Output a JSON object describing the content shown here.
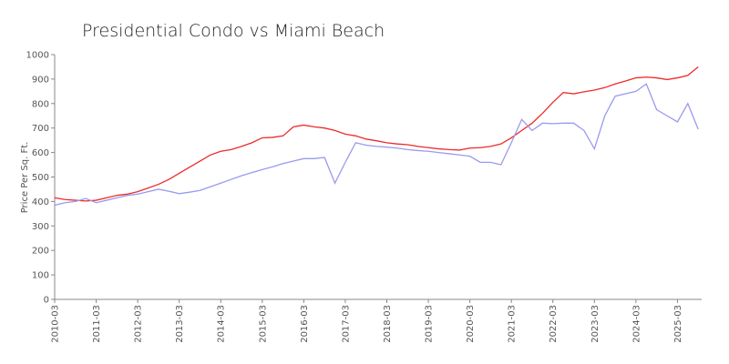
{
  "chart_data": {
    "type": "line",
    "title": "Presidential Condo vs Miami Beach",
    "ylabel": "Price Per Sq. Ft.",
    "x": [
      "2010-03",
      "2010-06",
      "2010-09",
      "2010-12",
      "2011-03",
      "2011-06",
      "2011-09",
      "2011-12",
      "2012-03",
      "2012-06",
      "2012-09",
      "2012-12",
      "2013-03",
      "2013-06",
      "2013-09",
      "2013-12",
      "2014-03",
      "2014-06",
      "2014-09",
      "2014-12",
      "2015-03",
      "2015-06",
      "2015-09",
      "2015-12",
      "2016-03",
      "2016-06",
      "2016-09",
      "2016-12",
      "2017-03",
      "2017-06",
      "2017-09",
      "2017-12",
      "2018-03",
      "2018-06",
      "2018-09",
      "2018-12",
      "2019-03",
      "2019-06",
      "2019-09",
      "2019-12",
      "2020-03",
      "2020-06",
      "2020-09",
      "2020-12",
      "2021-03",
      "2021-06",
      "2021-09",
      "2021-12",
      "2022-03",
      "2022-06",
      "2022-09",
      "2022-12",
      "2023-03",
      "2023-06",
      "2023-09",
      "2023-12",
      "2024-03",
      "2024-06",
      "2024-09",
      "2024-12",
      "2025-03",
      "2025-06",
      "2025-09"
    ],
    "series": [
      {
        "color": "#ee2a2a",
        "values": [
          415,
          408,
          405,
          402,
          405,
          415,
          425,
          430,
          440,
          455,
          470,
          490,
          515,
          540,
          565,
          590,
          605,
          612,
          625,
          640,
          660,
          662,
          668,
          705,
          712,
          705,
          700,
          690,
          675,
          668,
          655,
          648,
          640,
          635,
          632,
          625,
          620,
          615,
          612,
          610,
          618,
          620,
          625,
          635,
          660,
          690,
          720,
          760,
          805,
          845,
          840,
          848,
          855,
          865,
          880,
          892,
          905,
          908,
          905,
          898,
          905,
          915,
          950
        ]
      },
      {
        "color": "#9a9aee",
        "values": [
          385,
          395,
          400,
          412,
          395,
          405,
          415,
          425,
          430,
          440,
          450,
          442,
          432,
          438,
          445,
          460,
          475,
          490,
          505,
          518,
          530,
          542,
          555,
          565,
          575,
          575,
          580,
          475,
          560,
          640,
          630,
          625,
          622,
          618,
          612,
          608,
          605,
          600,
          595,
          590,
          585,
          560,
          560,
          550,
          640,
          735,
          690,
          720,
          718,
          720,
          720,
          690,
          615,
          750,
          830,
          840,
          850,
          880,
          775,
          750,
          725,
          800,
          695
        ]
      }
    ],
    "xlim": [
      "2010-03",
      "2025-10"
    ],
    "xticks": [
      "2010-03",
      "2011-03",
      "2012-03",
      "2013-03",
      "2014-03",
      "2015-03",
      "2016-03",
      "2017-03",
      "2018-03",
      "2019-03",
      "2020-03",
      "2021-03",
      "2022-03",
      "2023-03",
      "2024-03",
      "2025-03"
    ],
    "ylim": [
      0,
      1000
    ],
    "yticks": [
      0,
      100,
      200,
      300,
      400,
      500,
      600,
      700,
      800,
      900,
      1000
    ]
  }
}
